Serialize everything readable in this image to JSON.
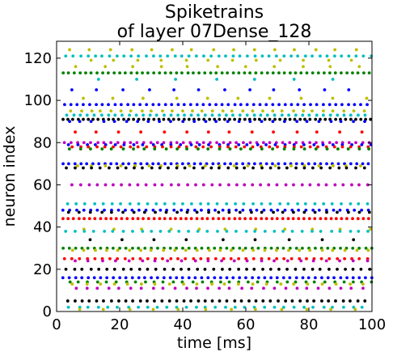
{
  "chart_data": {
    "type": "scatter",
    "title": [
      "Spiketrains",
      "of layer 07Dense_128"
    ],
    "xlabel": "time [ms]",
    "ylabel": "neuron index",
    "xlim": [
      0,
      100
    ],
    "ylim": [
      0,
      128
    ],
    "xticks": [
      0,
      20,
      40,
      60,
      80,
      100
    ],
    "yticks": [
      0,
      20,
      40,
      60,
      80,
      100,
      120
    ],
    "grid": false,
    "legend": "none",
    "colors": [
      "#00bfbf",
      "#bfbf00",
      "#008000",
      "#0000ff",
      "#ff0000",
      "#000000",
      "#bf00bf"
    ],
    "neurons": [
      {
        "index": 124,
        "color": "#bfbf00",
        "start": 4.0,
        "period": 6.5,
        "jitter": 0.4
      },
      {
        "index": 121,
        "color": "#00bfbf",
        "start": 3.0,
        "period": 2.3,
        "jitter": 0.2
      },
      {
        "index": 119,
        "color": "#bfbf00",
        "start": 11.0,
        "period": 7.5,
        "jitter": 0.5
      },
      {
        "index": 116,
        "color": "#bfbf00",
        "start": 6.0,
        "period": 9.0,
        "jitter": 0.6
      },
      {
        "index": 113,
        "color": "#008000",
        "start": 2.0,
        "period": 1.8,
        "jitter": 0.1
      },
      {
        "index": 110,
        "color": "#00bfbf",
        "start": 13.0,
        "period": 12.5,
        "jitter": 0.8
      },
      {
        "index": 105,
        "color": "#0000ff",
        "start": 5.0,
        "period": 8.0,
        "jitter": 0.5
      },
      {
        "index": 101,
        "color": "#bfbf00",
        "start": 8.0,
        "period": 10.0,
        "jitter": 0.6
      },
      {
        "index": 98,
        "color": "#0000ff",
        "start": 2.5,
        "period": 2.0,
        "jitter": 0.1
      },
      {
        "index": 95,
        "color": "#bfbf00",
        "start": 4.5,
        "period": 3.2,
        "jitter": 0.3
      },
      {
        "index": 93,
        "color": "#00bfbf",
        "start": 3.2,
        "period": 2.2,
        "jitter": 0.15
      },
      {
        "index": 91,
        "color": "#000000",
        "start": 2.0,
        "period": 1.6,
        "jitter": 0.1
      },
      {
        "index": 90,
        "color": "#0000ff",
        "start": 4.0,
        "period": 3.6,
        "jitter": 0.3
      },
      {
        "index": 85,
        "color": "#ff0000",
        "start": 6.0,
        "period": 7.0,
        "jitter": 0.5
      },
      {
        "index": 80,
        "color": "#bf00bf",
        "start": 2.5,
        "period": 2.1,
        "jitter": 0.15
      },
      {
        "index": 79,
        "color": "#0000ff",
        "start": 3.5,
        "period": 3.0,
        "jitter": 0.3
      },
      {
        "index": 78,
        "color": "#ff0000",
        "start": 5.0,
        "period": 2.6,
        "jitter": 0.2
      },
      {
        "index": 77,
        "color": "#008000",
        "start": 4.0,
        "period": 3.4,
        "jitter": 0.3
      },
      {
        "index": 70,
        "color": "#0000ff",
        "start": 2.0,
        "period": 1.9,
        "jitter": 0.1
      },
      {
        "index": 69,
        "color": "#bfbf00",
        "start": 6.5,
        "period": 4.5,
        "jitter": 0.4
      },
      {
        "index": 68,
        "color": "#000000",
        "start": 3.0,
        "period": 2.7,
        "jitter": 0.2
      },
      {
        "index": 60,
        "color": "#bf00bf",
        "start": 5.0,
        "period": 2.6,
        "jitter": 0.2
      },
      {
        "index": 51,
        "color": "#00bfbf",
        "start": 3.5,
        "period": 2.8,
        "jitter": 0.2
      },
      {
        "index": 48,
        "color": "#0000ff",
        "start": 2.0,
        "period": 2.2,
        "jitter": 0.15
      },
      {
        "index": 47,
        "color": "#000000",
        "start": 4.0,
        "period": 3.4,
        "jitter": 0.3
      },
      {
        "index": 44,
        "color": "#ff0000",
        "start": 2.0,
        "period": 1.7,
        "jitter": 0.1
      },
      {
        "index": 39,
        "color": "#bfbf00",
        "start": 9.0,
        "period": 9.0,
        "jitter": 0.6
      },
      {
        "index": 38,
        "color": "#00bfbf",
        "start": 3.0,
        "period": 3.0,
        "jitter": 0.3
      },
      {
        "index": 34,
        "color": "#000000",
        "start": 10.0,
        "period": 10.5,
        "jitter": 0.8
      },
      {
        "index": 30,
        "color": "#008000",
        "start": 2.0,
        "period": 2.0,
        "jitter": 0.1
      },
      {
        "index": 29,
        "color": "#bfbf00",
        "start": 5.0,
        "period": 3.6,
        "jitter": 0.3
      },
      {
        "index": 25,
        "color": "#ff0000",
        "start": 2.5,
        "period": 2.4,
        "jitter": 0.15
      },
      {
        "index": 24,
        "color": "#bf00bf",
        "start": 6.0,
        "period": 4.2,
        "jitter": 0.3
      },
      {
        "index": 20,
        "color": "#000000",
        "start": 3.0,
        "period": 2.6,
        "jitter": 0.2
      },
      {
        "index": 16,
        "color": "#0000ff",
        "start": 2.0,
        "period": 2.0,
        "jitter": 0.1
      },
      {
        "index": 14,
        "color": "#008000",
        "start": 4.0,
        "period": 3.0,
        "jitter": 0.3
      },
      {
        "index": 13,
        "color": "#bfbf00",
        "start": 5.0,
        "period": 4.4,
        "jitter": 0.3
      },
      {
        "index": 11,
        "color": "#bf00bf",
        "start": 6.0,
        "period": 3.5,
        "jitter": 0.3
      },
      {
        "index": 5,
        "color": "#000000",
        "start": 3.5,
        "period": 2.3,
        "jitter": 0.15
      },
      {
        "index": 2,
        "color": "#00bfbf",
        "start": 4.0,
        "period": 3.1,
        "jitter": 0.3
      },
      {
        "index": 1,
        "color": "#bfbf00",
        "start": 7.0,
        "period": 8.0,
        "jitter": 0.5
      }
    ]
  }
}
